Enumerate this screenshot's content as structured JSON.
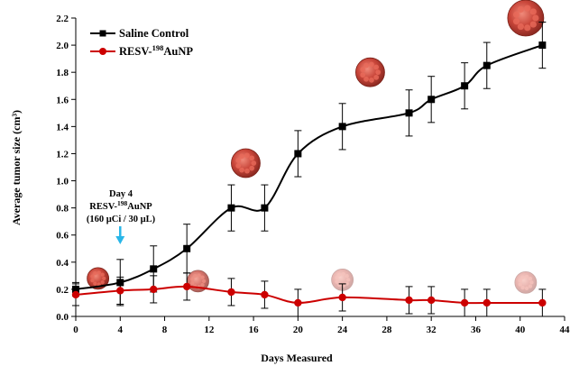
{
  "chart_data": {
    "type": "line",
    "title": "",
    "xlabel": "Days Measured",
    "ylabel": "Average tumor size (cm³)",
    "xlim": [
      0,
      44
    ],
    "ylim": [
      0.0,
      2.2
    ],
    "x_ticks": [
      "0",
      "4",
      "8",
      "12",
      "16",
      "20",
      "24",
      "28",
      "32",
      "36",
      "40",
      "44"
    ],
    "y_ticks": [
      "0.0",
      "0.2",
      "0.4",
      "0.6",
      "0.8",
      "1.0",
      "1.2",
      "1.4",
      "1.6",
      "1.8",
      "2.0",
      "2.2"
    ],
    "grid": false,
    "legend_position": "top-left",
    "series": [
      {
        "name": "Saline Control",
        "legend_main": "Saline Control",
        "legend_sup": "",
        "legend_tail": "",
        "color": "#000000",
        "marker": "square",
        "x": [
          0,
          4,
          7,
          10,
          14,
          17,
          20,
          24,
          30,
          32,
          35,
          37,
          42
        ],
        "y": [
          0.2,
          0.25,
          0.35,
          0.5,
          0.8,
          0.8,
          1.2,
          1.4,
          1.5,
          1.6,
          1.7,
          1.85,
          2.0
        ],
        "err": [
          0.05,
          0.17,
          0.17,
          0.18,
          0.17,
          0.17,
          0.17,
          0.17,
          0.17,
          0.17,
          0.17,
          0.17,
          0.17
        ]
      },
      {
        "name": "RESV-198AuNP",
        "legend_main": "RESV-",
        "legend_sup": "198",
        "legend_tail": "AuNP",
        "color": "#cc0000",
        "marker": "circle",
        "x": [
          0,
          4,
          7,
          10,
          14,
          17,
          20,
          24,
          30,
          32,
          35,
          37,
          42
        ],
        "y": [
          0.16,
          0.19,
          0.2,
          0.22,
          0.18,
          0.16,
          0.1,
          0.14,
          0.12,
          0.12,
          0.1,
          0.1,
          0.1
        ],
        "err": [
          0.08,
          0.1,
          0.1,
          0.1,
          0.1,
          0.1,
          0.1,
          0.1,
          0.1,
          0.1,
          0.1,
          0.1,
          0.1
        ]
      }
    ],
    "annotation": {
      "line1": "Day 4",
      "line2_main": "RESV-",
      "line2_sup": "198",
      "line2_tail": "AuNP",
      "line3": "(160 µCi / 30 µL)",
      "arrow_color": "#29b6e8",
      "arrow_x": 4
    },
    "tumor_icons": [
      {
        "x": 2,
        "y": 0.28,
        "size": "small",
        "state": "intact"
      },
      {
        "x": 11,
        "y": 0.26,
        "size": "small",
        "state": "fading"
      },
      {
        "x": 24,
        "y": 0.27,
        "size": "small",
        "state": "faint"
      },
      {
        "x": 40.5,
        "y": 0.25,
        "size": "small",
        "state": "faint"
      },
      {
        "x": 15.3,
        "y": 1.13,
        "size": "medium",
        "state": "intact"
      },
      {
        "x": 26.5,
        "y": 1.8,
        "size": "medium",
        "state": "intact"
      },
      {
        "x": 40.5,
        "y": 2.2,
        "size": "large",
        "state": "intact"
      }
    ]
  }
}
